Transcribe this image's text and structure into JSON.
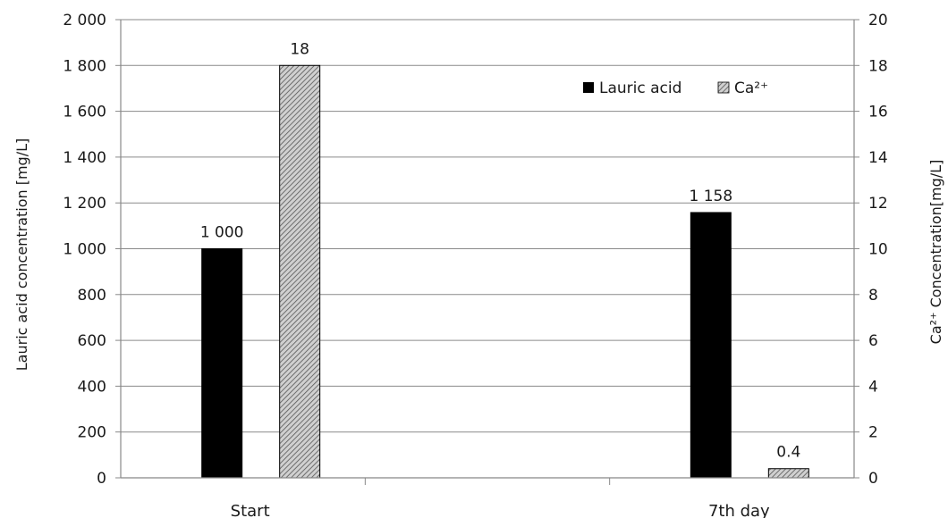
{
  "chart_data": {
    "type": "bar",
    "categories": [
      "Start",
      "7th day"
    ],
    "series": [
      {
        "name": "Lauric acid",
        "axis": "left",
        "values": [
          1000,
          1158
        ],
        "data_labels": [
          "1 000",
          "1 158"
        ],
        "color": "#000000"
      },
      {
        "name": "Ca²⁺",
        "axis": "right",
        "values": [
          18,
          0.4
        ],
        "data_labels": [
          "18",
          "0.4"
        ],
        "color": "#9a9a9a",
        "pattern": "diagonal-hatch"
      }
    ],
    "y_left": {
      "label": "Lauric acid concentration [mg/L]",
      "range": [
        0,
        2000
      ],
      "ticks": [
        0,
        200,
        400,
        600,
        800,
        1000,
        1200,
        1400,
        1600,
        1800,
        2000
      ],
      "tick_labels": [
        "0",
        "200",
        "400",
        "600",
        "800",
        "1 000",
        "1 200",
        "1 400",
        "1 600",
        "1 800",
        "2 000"
      ]
    },
    "y_right": {
      "label": "Ca²⁺ Concentration[mg/L]",
      "range": [
        0,
        20
      ],
      "ticks": [
        0,
        2,
        4,
        6,
        8,
        10,
        12,
        14,
        16,
        18,
        20
      ],
      "tick_labels": [
        "0",
        "2",
        "4",
        "6",
        "8",
        "10",
        "12",
        "14",
        "16",
        "18",
        "20"
      ]
    },
    "grid": true,
    "legend_position": "top-right",
    "colors": {
      "axis": "#888888",
      "grid": "#8a8a8a",
      "bar_outline": "#000000"
    }
  }
}
